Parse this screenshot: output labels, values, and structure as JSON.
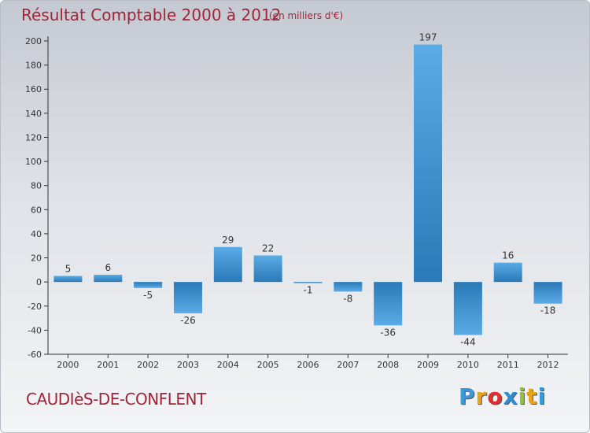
{
  "chart_data": {
    "type": "bar",
    "title": "Résultat Comptable 2000 à 2012",
    "subtitle": "(en milliers d'€)",
    "categories": [
      "2000",
      "2001",
      "2002",
      "2003",
      "2004",
      "2005",
      "2006",
      "2007",
      "2008",
      "2009",
      "2010",
      "2011",
      "2012"
    ],
    "values": [
      5,
      6,
      -5,
      -26,
      29,
      22,
      -1,
      -8,
      -36,
      197,
      -44,
      16,
      -18
    ],
    "data_labels": [
      "5",
      "6",
      "-5",
      "-26",
      "29",
      "22",
      "-1",
      "-8",
      "-36",
      "197",
      "-44",
      "16",
      "-18"
    ],
    "ylim": [
      -60,
      200
    ],
    "yticks": [
      -60,
      -40,
      -20,
      0,
      20,
      40,
      60,
      80,
      100,
      120,
      140,
      160,
      180,
      200
    ],
    "grid": false,
    "bar_color": "#3d8fd0"
  },
  "commune": "CAUDIèS-DE-CONFLENT",
  "logo": {
    "letters": [
      "P",
      "r",
      "o",
      "x",
      "i",
      "t",
      "i"
    ],
    "colors": [
      "#3a9ad9",
      "#e8a31c",
      "#e03030",
      "#2e8fd0",
      "#8fc43a",
      "#e8a31c",
      "#3a9ad9"
    ]
  }
}
